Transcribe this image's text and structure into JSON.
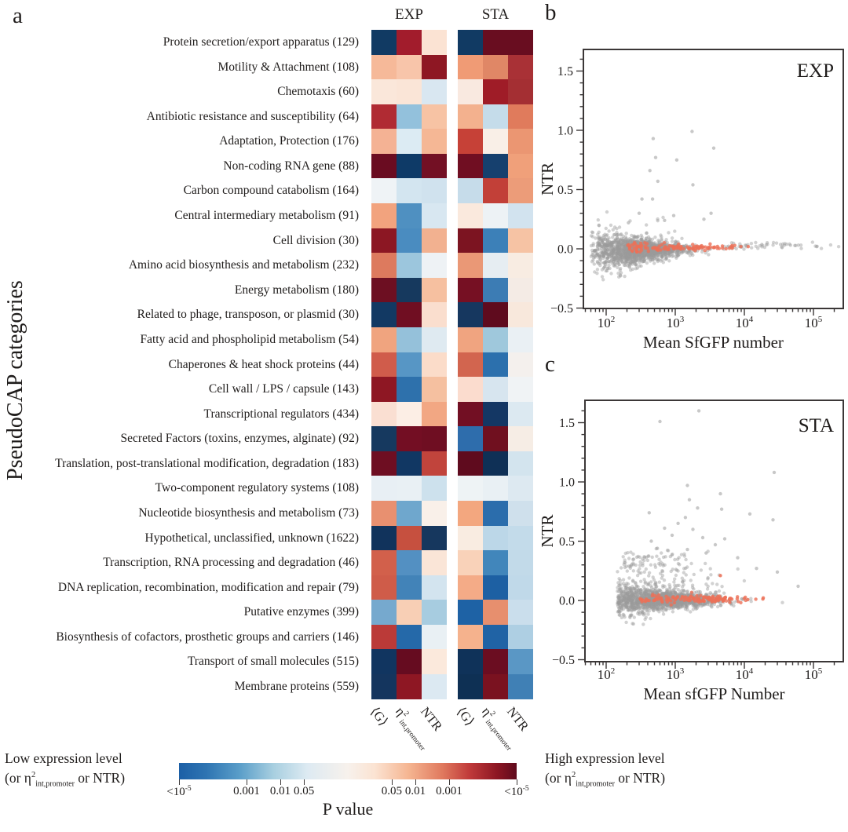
{
  "panel_a": {
    "letter": "a",
    "ylabel": "PseudoCAP categories",
    "groups": [
      "EXP",
      "STA"
    ],
    "col_labels": {
      "g": "⟨G⟩",
      "eta_base": "η",
      "eta_sup": "2",
      "eta_sub": "int,promoter",
      "ntr": "NTR"
    }
  },
  "colorbar": {
    "left_line1": "Low expression level",
    "right_line1": "High expression level",
    "paren_pre": "(or ",
    "eta_base": "η",
    "eta_sup": "2",
    "eta_sub": "int,promoter",
    "paren_post": " or NTR)",
    "title": "P value",
    "tick_labels": [
      {
        "t": "<10",
        "s": "-5"
      },
      {
        "t": "0.001"
      },
      {
        "t": "0.01"
      },
      {
        "t": "0.05"
      },
      {
        "t": "0.05"
      },
      {
        "t": "0.01"
      },
      {
        "t": "0.001"
      },
      {
        "t": "<10",
        "s": "-5"
      }
    ],
    "tick_positions_pct": [
      0,
      20,
      30,
      37,
      63,
      70,
      80,
      100
    ],
    "gradient_stops": [
      [
        0,
        "#1c5fa6"
      ],
      [
        8,
        "#2e74b2"
      ],
      [
        18,
        "#5a9ec9"
      ],
      [
        28,
        "#a8cfe0"
      ],
      [
        38,
        "#ddeaf2"
      ],
      [
        50,
        "#f7f1ec"
      ],
      [
        58,
        "#fbe3d2"
      ],
      [
        68,
        "#f5b591"
      ],
      [
        78,
        "#e0795e"
      ],
      [
        86,
        "#c03a3a"
      ],
      [
        94,
        "#8e1723"
      ],
      [
        100,
        "#5f0a1d"
      ]
    ]
  },
  "panel_b": {
    "letter": "b",
    "annotation": "EXP",
    "xlabel": "Mean SfGFP number",
    "ylabel": "NTR"
  },
  "panel_c": {
    "letter": "c",
    "annotation": "STA",
    "xlabel": "Mean sfGFP Number",
    "ylabel": "NTR"
  },
  "chart_data": [
    {
      "type": "heatmap",
      "condition_groups": [
        "EXP",
        "STA"
      ],
      "columns": [
        "<G>",
        "eta2_int,promoter",
        "NTR"
      ],
      "value_meaning": "P value (blue = low expression / eta2 / NTR enriched, red = high)",
      "rows": [
        {
          "label": "Protein secretion/export apparatus (129)",
          "exp": [
            "#113a63",
            "#a21c2c",
            "#fbe3d3"
          ],
          "sta": [
            "#113a63",
            "#690d20",
            "#690d20"
          ]
        },
        {
          "label": "Motility & Attachment (108)",
          "exp": [
            "#f6b999",
            "#f8c5aa",
            "#8e1723"
          ],
          "sta": [
            "#f09b75",
            "#e08766",
            "#a93136"
          ]
        },
        {
          "label": "Chemotaxis (60)",
          "exp": [
            "#fae7da",
            "#fae5d7",
            "#d9e7f1"
          ],
          "sta": [
            "#f9e9e0",
            "#9f1c27",
            "#a42f33"
          ]
        },
        {
          "label": "Antibiotic resistance and susceptibility (64)",
          "exp": [
            "#b02b33",
            "#93c1dc",
            "#f7c3a4"
          ],
          "sta": [
            "#f3b18e",
            "#c5dcea",
            "#e07b5c"
          ]
        },
        {
          "label": "Adaptation, Protection (176)",
          "exp": [
            "#f4b294",
            "#dcebf3",
            "#f5b795"
          ],
          "sta": [
            "#c64137",
            "#f9efe7",
            "#eb9672"
          ]
        },
        {
          "label": "Non-coding RNA gene (88)",
          "exp": [
            "#6a0c21",
            "#0e3a67",
            "#731024"
          ],
          "sta": [
            "#700e22",
            "#16406e",
            "#f0a07a"
          ]
        },
        {
          "label": "Carbon compound catabolism (164)",
          "exp": [
            "#eff3f6",
            "#d3e5f0",
            "#d0e2ee"
          ],
          "sta": [
            "#c6dcea",
            "#c24038",
            "#ec9c79"
          ]
        },
        {
          "label": "Central intermediary metabolism (91)",
          "exp": [
            "#f2a37e",
            "#4f90c1",
            "#d8e7f1"
          ],
          "sta": [
            "#fae9dd",
            "#edf2f5",
            "#d2e3ef"
          ]
        },
        {
          "label": "Cell division (30)",
          "exp": [
            "#8c1723",
            "#4a8cc0",
            "#f2b190"
          ],
          "sta": [
            "#7c1421",
            "#3c80b8",
            "#f6c3a4"
          ]
        },
        {
          "label": "Amino acid biosynthesis and metabolism (232)",
          "exp": [
            "#dd7a5e",
            "#9cc6dd",
            "#eef2f5"
          ],
          "sta": [
            "#ea9876",
            "#e6edf2",
            "#f8ece2"
          ]
        },
        {
          "label": "Energy metabolism (180)",
          "exp": [
            "#6d0f22",
            "#16395e",
            "#f6c0a0"
          ],
          "sta": [
            "#761023",
            "#3c7cb4",
            "#f4ebe5"
          ]
        },
        {
          "label": "Related to phage, transposon, or plasmid (30)",
          "exp": [
            "#123963",
            "#700e22",
            "#fadece"
          ],
          "sta": [
            "#16375f",
            "#5f0b1e",
            "#f8e8dc"
          ]
        },
        {
          "label": "Fatty acid and phospholipid metabolism (54)",
          "exp": [
            "#f0a47f",
            "#95c1da",
            "#dfeaf1"
          ],
          "sta": [
            "#f0a480",
            "#9fc8dc",
            "#eaf0f4"
          ]
        },
        {
          "label": "Chaperones & heat shock proteins (44)",
          "exp": [
            "#d05c4b",
            "#5796c5",
            "#fbdcc9"
          ],
          "sta": [
            "#d2654f",
            "#2c70ad",
            "#f4f0ed"
          ]
        },
        {
          "label": "Cell wall / LPS / capsule (143)",
          "exp": [
            "#8e1723",
            "#2e71ac",
            "#f5c0a0"
          ],
          "sta": [
            "#fbdcce",
            "#d7e5ef",
            "#f0f3f5"
          ]
        },
        {
          "label": "Transcriptional regulators (434)",
          "exp": [
            "#fadfd2",
            "#fceee5",
            "#f2a783"
          ],
          "sta": [
            "#720f23",
            "#143764",
            "#dce9f1"
          ]
        },
        {
          "label": "Secreted Factors (toxins, enzymes, alginate) (92)",
          "exp": [
            "#16395f",
            "#730e23",
            "#6f0e22"
          ],
          "sta": [
            "#2e6dac",
            "#70101f",
            "#f6ede5"
          ]
        },
        {
          "label": "Translation, post-translational modification, degradation (183)",
          "exp": [
            "#6e0e22",
            "#113763",
            "#c1443c"
          ],
          "sta": [
            "#5f0b1e",
            "#0f3056",
            "#d3e4ee"
          ]
        },
        {
          "label": "Two-component regulatory systems (108)",
          "exp": [
            "#e8eff4",
            "#e9f0f4",
            "#cde1ed"
          ],
          "sta": [
            "#eef3f5",
            "#e9f0f4",
            "#dde9f1"
          ]
        },
        {
          "label": "Nucleotide biosynthesis and metabolism (73)",
          "exp": [
            "#e89070",
            "#6fa7cd",
            "#f9f0e9"
          ],
          "sta": [
            "#f3a77f",
            "#2b6dac",
            "#cfe0ec"
          ]
        },
        {
          "label": "Hypothetical, unclassified, unknown (1622)",
          "exp": [
            "#11335c",
            "#c6503f",
            "#16375e"
          ],
          "sta": [
            "#f9ece1",
            "#bcd7e8",
            "#c3dbea"
          ]
        },
        {
          "label": "Transcription, RNA processing and degradation (46)",
          "exp": [
            "#d2604b",
            "#5390c2",
            "#fae5d7"
          ],
          "sta": [
            "#f9d2b9",
            "#4186bb",
            "#c2dae9"
          ]
        },
        {
          "label": "DNA replication, recombination, modification and repair (79)",
          "exp": [
            "#cf5c49",
            "#4283b8",
            "#d3e4ef"
          ],
          "sta": [
            "#f4ab87",
            "#1d60a3",
            "#c0d9e9"
          ]
        },
        {
          "label": "Putative enzymes (399)",
          "exp": [
            "#76a9ce",
            "#f8cfb5",
            "#a7cce0"
          ],
          "sta": [
            "#1e62a5",
            "#e78f6e",
            "#cadeec"
          ]
        },
        {
          "label": "Biosynthesis of cofactors, prosthetic groups and carriers (146)",
          "exp": [
            "#bb3a38",
            "#2569a9",
            "#e9f0f4"
          ],
          "sta": [
            "#f5b28d",
            "#2063a5",
            "#aecfe3"
          ]
        },
        {
          "label": "Transport of small molecules (515)",
          "exp": [
            "#113560",
            "#660c20",
            "#fbe9dc"
          ],
          "sta": [
            "#0f3259",
            "#6b0d21",
            "#5a97c5"
          ]
        },
        {
          "label": "Membrane proteins (559)",
          "exp": [
            "#14355e",
            "#8e1723",
            "#dce9f2"
          ],
          "sta": [
            "#0e3054",
            "#7a1220",
            "#4080b5"
          ]
        }
      ]
    },
    {
      "type": "scatter",
      "panel": "b",
      "annotation": "EXP",
      "xlabel": "Mean SfGFP number",
      "ylabel": "NTR",
      "xscale": "log",
      "xlim": [
        47,
        270000
      ],
      "ylim": [
        -0.52,
        1.7
      ],
      "x_major_ticks": [
        100,
        1000,
        10000,
        100000
      ],
      "x_tick_exponents": [
        2,
        3,
        4,
        5
      ],
      "y_major_ticks": [
        -0.5,
        0,
        0.5,
        1,
        1.5
      ],
      "y_tick_labels": [
        "−0.5",
        "0.0",
        "0.5",
        "1.0",
        "1.5"
      ],
      "gray_color": "#9b9b9b",
      "red_color": "#ec7157",
      "clouds": [
        {
          "color": "gray",
          "n": 1500,
          "seed": 11,
          "lx_mu": 2.45,
          "lx_sd": 0.35,
          "lx_min": 1.78,
          "lx_max": 3.95,
          "y_mu": -0.005,
          "y_s0": 0.07,
          "y_decay": 0.5,
          "y_s1": 0.008,
          "neg_frac": 0.12,
          "neg_max": 0.14,
          "pos_frac": 0.025,
          "pos_max": 0.25
        },
        {
          "color": "gray",
          "n": 58,
          "seed": 12,
          "lx_dist": "uniform",
          "lx_min": 3.7,
          "lx_max": 5.42,
          "y_mu": 0.03,
          "y_s0": 0,
          "y_decay": 0,
          "y_s1": 0.013,
          "neg_frac": 0,
          "neg_max": 0,
          "pos_frac": 0,
          "pos_max": 0
        },
        {
          "color": "red",
          "n": 120,
          "seed": 13,
          "lx_mu": 2.9,
          "lx_sd": 0.5,
          "lx_min": 2.3,
          "lx_max": 5.35,
          "y_mu": 0.01,
          "y_s0": 0.02,
          "y_decay": 0.4,
          "y_s1": 0.007,
          "neg_frac": 0.05,
          "neg_max": 0.06,
          "pos_frac": 0.02,
          "pos_max": 0.1
        }
      ],
      "outliers_gray": [
        [
          480,
          0.93
        ],
        [
          1750,
          0.99
        ],
        [
          3600,
          0.85
        ],
        [
          520,
          0.77
        ],
        [
          1050,
          0.75
        ],
        [
          430,
          0.66
        ],
        [
          560,
          0.57
        ],
        [
          1800,
          0.54
        ],
        [
          330,
          0.42
        ],
        [
          470,
          0.42
        ],
        [
          300,
          0.3
        ],
        [
          3300,
          0.3
        ],
        [
          950,
          0.28
        ],
        [
          2600,
          0.25
        ],
        [
          210,
          0.22
        ],
        [
          700,
          0.24
        ]
      ],
      "outliers_red": []
    },
    {
      "type": "scatter",
      "panel": "c",
      "annotation": "STA",
      "xlabel": "Mean sfGFP Number",
      "ylabel": "NTR",
      "xscale": "log",
      "xlim": [
        47,
        270000
      ],
      "ylim": [
        -0.52,
        1.7
      ],
      "x_major_ticks": [
        100,
        1000,
        10000,
        100000
      ],
      "x_tick_exponents": [
        2,
        3,
        4,
        5
      ],
      "y_major_ticks": [
        -0.5,
        0,
        0.5,
        1,
        1.5
      ],
      "y_tick_labels": [
        "−0.5",
        "0.0",
        "0.5",
        "1.0",
        "1.5"
      ],
      "gray_color": "#9b9b9b",
      "red_color": "#ec7157",
      "clouds": [
        {
          "color": "gray",
          "n": 1600,
          "seed": 21,
          "lx_mu": 2.8,
          "lx_sd": 0.42,
          "lx_min": 2.16,
          "lx_max": 5.03,
          "y_mu": 0.008,
          "y_s0": 0.06,
          "y_decay": 0.45,
          "y_s1": 0.014,
          "neg_frac": 0.1,
          "neg_max": 0.12,
          "pos_frac": 0.12,
          "pos_max": 0.4
        },
        {
          "color": "red",
          "n": 140,
          "seed": 22,
          "lx_mu": 3.3,
          "lx_sd": 0.5,
          "lx_min": 2.48,
          "lx_max": 4.6,
          "y_mu": 0.012,
          "y_s0": 0.015,
          "y_decay": 0.3,
          "y_s1": 0.008,
          "neg_frac": 0.04,
          "neg_max": 0.05,
          "pos_frac": 0.01,
          "pos_max": 0.15
        }
      ],
      "outliers_gray": [
        [
          2200,
          1.6
        ],
        [
          600,
          1.51
        ],
        [
          27000,
          1.08
        ],
        [
          1500,
          0.97
        ],
        [
          4500,
          0.9
        ],
        [
          1600,
          0.85
        ],
        [
          2100,
          0.78
        ],
        [
          4700,
          0.77
        ],
        [
          420,
          0.74
        ],
        [
          12000,
          0.73
        ],
        [
          1400,
          0.7
        ],
        [
          26000,
          0.68
        ],
        [
          1100,
          0.65
        ],
        [
          700,
          0.61
        ],
        [
          1800,
          0.6
        ],
        [
          900,
          0.55
        ],
        [
          2500,
          0.53
        ],
        [
          5200,
          0.52
        ],
        [
          450,
          0.5
        ],
        [
          3800,
          0.47
        ],
        [
          550,
          0.44
        ],
        [
          1500,
          0.43
        ],
        [
          2800,
          0.4
        ],
        [
          8000,
          0.36
        ],
        [
          15000,
          0.27
        ],
        [
          30000,
          0.24
        ],
        [
          60000,
          0.12
        ]
      ],
      "outliers_red": [
        [
          4500,
          0.21
        ]
      ]
    }
  ]
}
